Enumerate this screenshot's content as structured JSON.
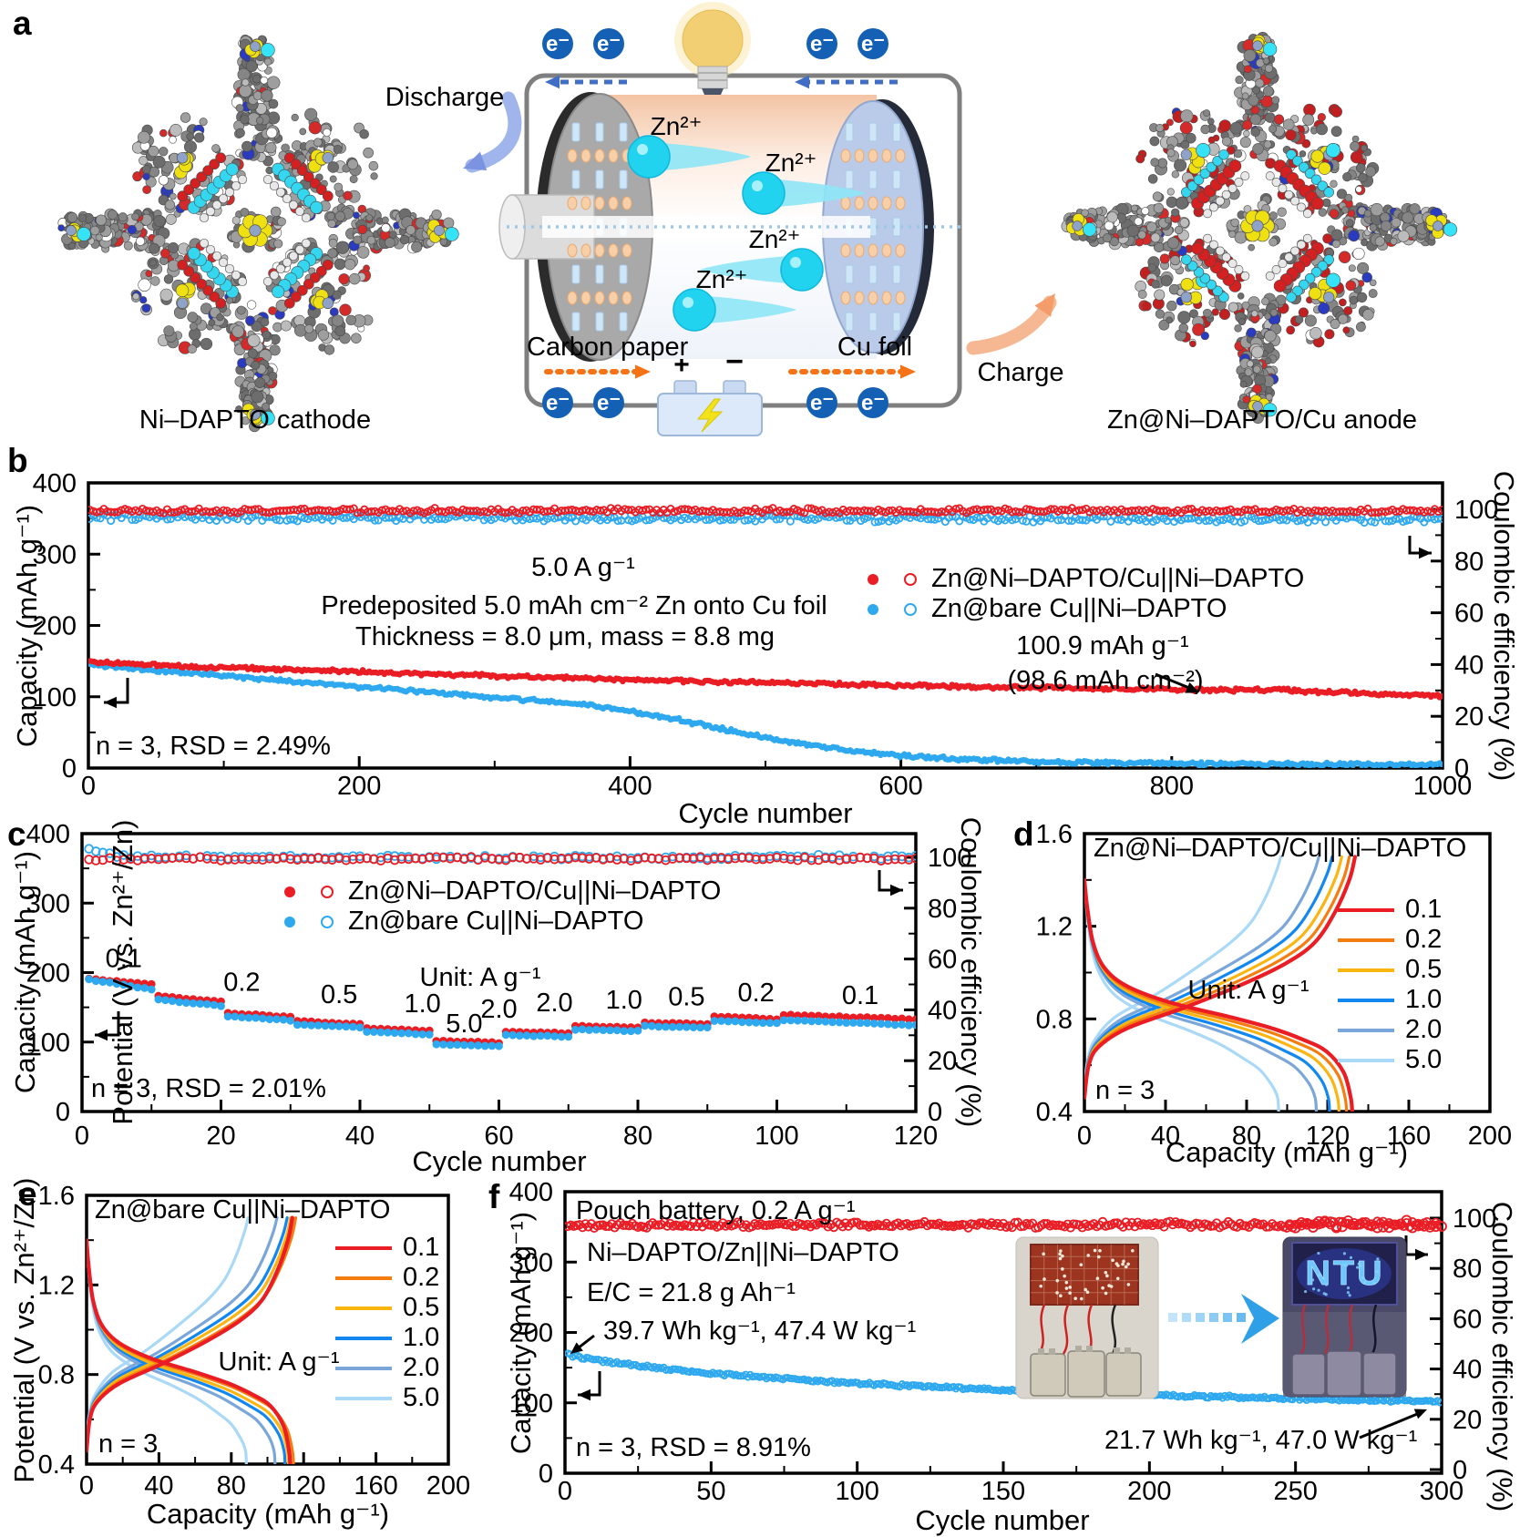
{
  "colors": {
    "red": "#ea1c24",
    "blue": "#2ea8ef",
    "orange02": "#f57d10",
    "amber05": "#fbb511",
    "blue10": "#1287ef",
    "steel20": "#7ba6d9",
    "light50": "#a9d9f7",
    "electron_circle": "#1360b4",
    "dash_blue": "#3f6ec4",
    "dot_orange": "#f57316",
    "cyan_ion": "#24d4f2",
    "axis": "#000000"
  },
  "panel_a": {
    "label": "a",
    "discharge": "Discharge",
    "charge": "Charge",
    "carbon_paper": "Carbon paper",
    "cu_foil": "Cu foil",
    "cathode_caption": "Ni–DAPTO cathode",
    "anode_caption": "Zn@Ni–DAPTO/Cu anode",
    "electron": "e⁻",
    "zn_ion": "Zn²⁺",
    "plus": "+",
    "minus": "−"
  },
  "panel_b": {
    "label": "b",
    "y_left_title": "Capacity (mAh g⁻¹)",
    "y_right_title": "Coulombic efficiency (%)",
    "x_title": "Cycle number",
    "note_rate": "5.0 A g⁻¹",
    "note_predep": "Predeposited 5.0 mAh cm⁻² Zn onto Cu foil",
    "note_thickness": "Thickness = 8.0 μm, mass = 8.8 mg",
    "note_stat": "n = 3, RSD = 2.49%",
    "anno_cap1": "100.9 mAh g⁻¹",
    "anno_cap2": "(98.6 mAh cm⁻²)",
    "legend": [
      "Zn@Ni–DAPTO/Cu||Ni–DAPTO",
      "Zn@bare Cu||Ni–DAPTO"
    ]
  },
  "panel_c": {
    "label": "c",
    "y_left_title": "Capacity (mAh g⁻¹)",
    "y_right_title": "Coulombic efficiency (%)",
    "x_title": "Cycle number",
    "note_unit": "Unit: A g⁻¹",
    "note_stat": "n = 3, RSD = 2.01%",
    "legend": [
      "Zn@Ni–DAPTO/Cu||Ni–DAPTO",
      "Zn@bare Cu||Ni–DAPTO"
    ]
  },
  "panel_d": {
    "label": "d",
    "title": "Zn@Ni–DAPTO/Cu||Ni–DAPTO",
    "y_title": "Potential (V vs. Zn²⁺/Zn)",
    "x_title": "Capacity (mAh g⁻¹)",
    "note_unit": "Unit: A g⁻¹",
    "note_stat": "n = 3"
  },
  "panel_e": {
    "label": "e",
    "title": "Zn@bare Cu||Ni–DAPTO",
    "y_title": "Potential (V vs. Zn²⁺/Zn)",
    "x_title": "Capacity (mAh g⁻¹)",
    "note_unit": "Unit: A g⁻¹",
    "note_stat": "n = 3"
  },
  "panel_f": {
    "label": "f",
    "y_left_title": "Capacity (mAh g⁻¹)",
    "y_right_title": "Coulombic efficiency (%)",
    "x_title": "Cycle number",
    "note_top": "Pouch battery, 0.2 A g⁻¹",
    "note_config": "Ni–DAPTO/Zn||Ni–DAPTO",
    "note_ec": "E/C = 21.8 g Ah⁻¹",
    "note_energy1": "39.7 Wh kg⁻¹, 47.4 W kg⁻¹",
    "note_stat": "n = 3, RSD = 8.91%",
    "note_energy2": "21.7 Wh kg⁻¹, 47.0 W kg⁻¹",
    "inset_led_text": "NTU"
  },
  "chart_data": [
    {
      "id": "b",
      "type": "scatter",
      "x_label": "Cycle number",
      "x_range": [
        0,
        1000
      ],
      "x_ticks": [
        0,
        200,
        400,
        600,
        800,
        1000
      ],
      "y_left_label": "Capacity (mAh g⁻¹)",
      "y_left_range": [
        0,
        400
      ],
      "y_left_ticks": [
        0,
        100,
        200,
        300,
        400
      ],
      "y_right_label": "Coulombic efficiency (%)",
      "y_right_ticks": [
        0,
        20,
        40,
        60,
        80,
        100
      ],
      "rate": "5.0 A g⁻¹",
      "final_capacity_mAh_g": 100.9,
      "final_capacity_mAh_cm2": 98.6,
      "series": [
        {
          "name": "Zn@Ni–DAPTO/Cu||Ni–DAPTO capacity",
          "axis": "left",
          "marker": "filled",
          "color_key": "red",
          "jitter": 1.6,
          "points": [
            [
              1,
              149
            ],
            [
              30,
              146
            ],
            [
              60,
              144
            ],
            [
              100,
              141
            ],
            [
              150,
              138
            ],
            [
              200,
              135
            ],
            [
              250,
              132
            ],
            [
              300,
              129
            ],
            [
              350,
              127
            ],
            [
              400,
              124
            ],
            [
              450,
              122
            ],
            [
              500,
              120
            ],
            [
              550,
              118
            ],
            [
              600,
              116
            ],
            [
              650,
              114
            ],
            [
              700,
              113
            ],
            [
              750,
              111
            ],
            [
              800,
              110
            ],
            [
              840,
              109
            ],
            [
              880,
              110
            ],
            [
              910,
              107
            ],
            [
              950,
              104
            ],
            [
              1000,
              101
            ]
          ]
        },
        {
          "name": "Zn@bare Cu||Ni–DAPTO capacity",
          "axis": "left",
          "marker": "filled",
          "color_key": "blue",
          "jitter": 1.6,
          "points": [
            [
              1,
              146
            ],
            [
              20,
              142
            ],
            [
              50,
              137
            ],
            [
              100,
              129
            ],
            [
              150,
              122
            ],
            [
              200,
              114
            ],
            [
              250,
              107
            ],
            [
              300,
              99
            ],
            [
              330,
              95
            ],
            [
              360,
              90
            ],
            [
              390,
              83
            ],
            [
              420,
              73
            ],
            [
              450,
              62
            ],
            [
              480,
              50
            ],
            [
              510,
              39
            ],
            [
              540,
              30
            ],
            [
              570,
              23
            ],
            [
              600,
              17
            ],
            [
              640,
              13
            ],
            [
              680,
              10
            ],
            [
              720,
              8
            ],
            [
              780,
              7
            ],
            [
              850,
              6
            ],
            [
              920,
              5
            ],
            [
              1000,
              5
            ]
          ]
        },
        {
          "name": "Zn@Ni–DAPTO/Cu||Ni–DAPTO CE",
          "axis": "right",
          "marker": "open",
          "color_key": "red",
          "jitter": 0.7,
          "points": [
            [
              1,
              99.4
            ],
            [
              500,
              99.5
            ],
            [
              1000,
              99.3
            ]
          ]
        },
        {
          "name": "Zn@bare Cu||Ni–DAPTO CE",
          "axis": "right",
          "marker": "open",
          "color_key": "blue",
          "jitter": 1.1,
          "points": [
            [
              1,
              96.9
            ],
            [
              400,
              96.6
            ],
            [
              700,
              96.4
            ],
            [
              1000,
              96.2
            ]
          ]
        }
      ]
    },
    {
      "id": "c",
      "type": "scatter",
      "x_label": "Cycle number",
      "x_range": [
        0,
        120
      ],
      "x_ticks": [
        0,
        20,
        40,
        60,
        80,
        100,
        120
      ],
      "y_left_label": "Capacity (mAh g⁻¹)",
      "y_left_range": [
        0,
        400
      ],
      "y_left_ticks": [
        0,
        100,
        200,
        300,
        400
      ],
      "y_right_label": "Coulombic efficiency (%)",
      "y_right_ticks": [
        0,
        20,
        40,
        60,
        80,
        100
      ],
      "unit": "A g⁻¹",
      "steps": [
        {
          "rate": "0.1",
          "cycles": [
            1,
            10
          ],
          "red": [
            191,
            183
          ],
          "blue": [
            190,
            176
          ]
        },
        {
          "rate": "0.2",
          "cycles": [
            11,
            20
          ],
          "red": [
            166,
            158
          ],
          "blue": [
            161,
            152
          ]
        },
        {
          "rate": "0.5",
          "cycles": [
            21,
            30
          ],
          "red": [
            142,
            136
          ],
          "blue": [
            137,
            131
          ]
        },
        {
          "rate": "1.0",
          "cycles": [
            31,
            40
          ],
          "red": [
            130,
            126
          ],
          "blue": [
            125,
            121
          ]
        },
        {
          "rate": "2.0",
          "cycles": [
            41,
            50
          ],
          "red": [
            120,
            116
          ],
          "blue": [
            115,
            111
          ]
        },
        {
          "rate": "5.0",
          "cycles": [
            51,
            60
          ],
          "red": [
            102,
            99
          ],
          "blue": [
            97,
            94
          ]
        },
        {
          "rate": "2.0",
          "cycles": [
            61,
            70
          ],
          "red": [
            115,
            113
          ],
          "blue": [
            110,
            108
          ]
        },
        {
          "rate": "1.0",
          "cycles": [
            71,
            80
          ],
          "red": [
            123,
            121
          ],
          "blue": [
            118,
            116
          ]
        },
        {
          "rate": "0.5",
          "cycles": [
            81,
            90
          ],
          "red": [
            128,
            126
          ],
          "blue": [
            123,
            121
          ]
        },
        {
          "rate": "0.2",
          "cycles": [
            91,
            100
          ],
          "red": [
            137,
            133
          ],
          "blue": [
            131,
            127
          ]
        },
        {
          "rate": "0.1",
          "cycles": [
            101,
            120
          ],
          "red": [
            139,
            133
          ],
          "blue": [
            132,
            124
          ]
        }
      ],
      "rate_labels": [
        {
          "text": "0.1",
          "cycle": 6,
          "cap": 208
        },
        {
          "text": "0.2",
          "cycle": 23,
          "cap": 174
        },
        {
          "text": "0.5",
          "cycle": 37,
          "cap": 156
        },
        {
          "text": "1.0",
          "cycle": 49,
          "cap": 143
        },
        {
          "text": "2.0",
          "cycle": 60,
          "cap": 135
        },
        {
          "text": "5.0",
          "cycle": 55,
          "cap": 114
        },
        {
          "text": "2.0",
          "cycle": 68,
          "cap": 144
        },
        {
          "text": "1.0",
          "cycle": 78,
          "cap": 148
        },
        {
          "text": "0.5",
          "cycle": 87,
          "cap": 153
        },
        {
          "text": "0.2",
          "cycle": 97,
          "cap": 159
        },
        {
          "text": "0.1",
          "cycle": 112,
          "cap": 155
        }
      ],
      "series": [
        {
          "name": "Zn@Ni–DAPTO/Cu||Ni–DAPTO CE",
          "axis": "right",
          "marker": "open",
          "color_key": "red",
          "jitter": 0.4,
          "points": [
            [
              1,
              99.3
            ],
            [
              60,
              99.5
            ],
            [
              120,
              99.4
            ]
          ]
        },
        {
          "name": "Zn@bare Cu||Ni–DAPTO CE",
          "axis": "right",
          "marker": "open",
          "color_key": "blue",
          "jitter": 0.5,
          "points": [
            [
              1,
              103
            ],
            [
              3,
              101.5
            ],
            [
              6,
              100.4
            ],
            [
              20,
              100
            ],
            [
              60,
              99.8
            ],
            [
              90,
              100
            ],
            [
              120,
              100.4
            ]
          ]
        }
      ]
    },
    {
      "id": "d",
      "type": "line",
      "x_label": "Capacity (mAh g⁻¹)",
      "x_range": [
        0,
        200
      ],
      "x_ticks": [
        0,
        40,
        80,
        120,
        160,
        200
      ],
      "y_label": "Potential (V vs. Zn²⁺/Zn)",
      "y_range": [
        0.4,
        1.6
      ],
      "y_ticks": [
        0.4,
        0.8,
        1.2,
        1.6
      ],
      "unit": "A g⁻¹",
      "series": [
        {
          "rate": "0.1",
          "color_key": "red",
          "cap_max": 142
        },
        {
          "rate": "0.2",
          "color_key": "orange02",
          "cap_max": 139
        },
        {
          "rate": "0.5",
          "color_key": "amber05",
          "cap_max": 135
        },
        {
          "rate": "1.0",
          "color_key": "blue10",
          "cap_max": 130
        },
        {
          "rate": "2.0",
          "color_key": "steel20",
          "cap_max": 123
        },
        {
          "rate": "5.0",
          "color_key": "light50",
          "cap_max": 103
        }
      ]
    },
    {
      "id": "e",
      "type": "line",
      "x_label": "Capacity (mAh g⁻¹)",
      "x_range": [
        0,
        200
      ],
      "x_ticks": [
        0,
        40,
        80,
        120,
        160,
        200
      ],
      "y_label": "Potential (V vs. Zn²⁺/Zn)",
      "y_range": [
        0.4,
        1.6
      ],
      "y_ticks": [
        0.4,
        0.8,
        1.2,
        1.6
      ],
      "unit": "A g⁻¹",
      "series": [
        {
          "rate": "0.1",
          "color_key": "red",
          "cap_max": 121
        },
        {
          "rate": "0.2",
          "color_key": "orange02",
          "cap_max": 123
        },
        {
          "rate": "0.5",
          "color_key": "amber05",
          "cap_max": 120
        },
        {
          "rate": "1.0",
          "color_key": "blue10",
          "cap_max": 118
        },
        {
          "rate": "2.0",
          "color_key": "steel20",
          "cap_max": 112
        },
        {
          "rate": "5.0",
          "color_key": "light50",
          "cap_max": 95
        }
      ]
    },
    {
      "id": "f",
      "type": "scatter",
      "x_label": "Cycle number",
      "x_range": [
        0,
        300
      ],
      "x_ticks": [
        0,
        50,
        100,
        150,
        200,
        250,
        300
      ],
      "y_left_label": "Capacity (mAh g⁻¹)",
      "y_left_range": [
        0,
        400
      ],
      "y_left_ticks": [
        0,
        100,
        200,
        300,
        400
      ],
      "y_right_label": "Coulombic efficiency (%)",
      "y_right_ticks": [
        0,
        20,
        40,
        60,
        80,
        100
      ],
      "series": [
        {
          "name": "Pouch CE",
          "axis": "right",
          "marker": "open",
          "color_key": "red",
          "jitter": 0.9,
          "points": [
            [
              1,
              97.0
            ],
            [
              40,
              97.4
            ],
            [
              80,
              97.2
            ],
            [
              120,
              97.5
            ],
            [
              160,
              97.3
            ],
            [
              200,
              97.6
            ],
            [
              240,
              97.2
            ],
            [
              270,
              97.8
            ],
            [
              300,
              97.5
            ]
          ]
        },
        {
          "name": "Pouch capacity",
          "axis": "left",
          "marker": "open",
          "color_key": "blue",
          "jitter": 1.0,
          "points": [
            [
              1,
              169
            ],
            [
              5,
              165
            ],
            [
              15,
              158
            ],
            [
              30,
              150
            ],
            [
              50,
              142
            ],
            [
              70,
              136
            ],
            [
              90,
              130
            ],
            [
              110,
              126
            ],
            [
              130,
              122
            ],
            [
              150,
              118
            ],
            [
              170,
              115
            ],
            [
              190,
              112
            ],
            [
              210,
              110
            ],
            [
              230,
              108
            ],
            [
              250,
              106
            ],
            [
              270,
              104
            ],
            [
              285,
              103
            ],
            [
              300,
              101
            ]
          ]
        }
      ]
    }
  ]
}
